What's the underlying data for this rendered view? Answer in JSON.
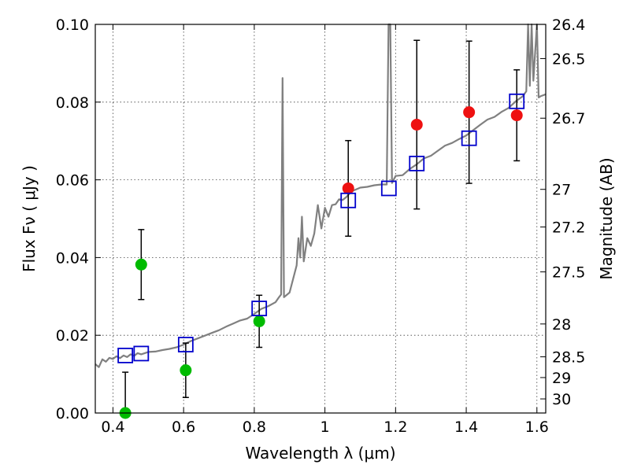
{
  "chart_data": {
    "type": "scatter",
    "xlabel": "Wavelength  λ (μm)",
    "ylabel": "Flux  Fν  ( μJy )",
    "y2label": "Magnitude (AB)",
    "xlim": [
      0.35,
      1.625
    ],
    "ylim": [
      0.0,
      0.1
    ],
    "grid": true,
    "colors": {
      "model": "#808080",
      "green_points": "#00bb00",
      "red_points": "#ee1111",
      "model_squares": "#0000cc",
      "error_bars": "#000000"
    },
    "x_ticks": [
      {
        "value": 0.4,
        "label": "0.4"
      },
      {
        "value": 0.6,
        "label": "0.6"
      },
      {
        "value": 0.8,
        "label": "0.8"
      },
      {
        "value": 1.0,
        "label": "1"
      },
      {
        "value": 1.2,
        "label": "1.2"
      },
      {
        "value": 1.4,
        "label": "1.4"
      },
      {
        "value": 1.6,
        "label": "1.6"
      }
    ],
    "y_ticks": [
      {
        "value": 0.0,
        "label": "0.00"
      },
      {
        "value": 0.02,
        "label": "0.02"
      },
      {
        "value": 0.04,
        "label": "0.04"
      },
      {
        "value": 0.06,
        "label": "0.06"
      },
      {
        "value": 0.08,
        "label": "0.08"
      },
      {
        "value": 0.1,
        "label": "0.10"
      }
    ],
    "mag_ticks": [
      {
        "value": 26.4,
        "label": "26.4"
      },
      {
        "value": 26.5,
        "label": "26.5"
      },
      {
        "value": 26.7,
        "label": "26.7"
      },
      {
        "value": 27.0,
        "label": "27"
      },
      {
        "value": 27.2,
        "label": "27.2"
      },
      {
        "value": 27.5,
        "label": "27.5"
      },
      {
        "value": 28.0,
        "label": "28"
      },
      {
        "value": 28.5,
        "label": "28.5"
      },
      {
        "value": 29.0,
        "label": "29"
      },
      {
        "value": 30.0,
        "label": "30"
      }
    ],
    "green_points": [
      {
        "x": 0.435,
        "y": 0.0,
        "err": 0.0105
      },
      {
        "x": 0.48,
        "y": 0.0382,
        "err": 0.009
      },
      {
        "x": 0.606,
        "y": 0.011,
        "err": 0.007
      },
      {
        "x": 0.814,
        "y": 0.0236,
        "err": 0.0067
      }
    ],
    "red_points": [
      {
        "x": 1.066,
        "y": 0.0578,
        "err": 0.0123
      },
      {
        "x": 1.26,
        "y": 0.0742,
        "err": 0.0217
      },
      {
        "x": 1.408,
        "y": 0.0774,
        "err": 0.0183
      },
      {
        "x": 1.543,
        "y": 0.0766,
        "err": 0.0117
      }
    ],
    "model_squares": [
      {
        "x": 0.435,
        "y": 0.0148
      },
      {
        "x": 0.48,
        "y": 0.0153
      },
      {
        "x": 0.606,
        "y": 0.0176
      },
      {
        "x": 0.814,
        "y": 0.0269
      },
      {
        "x": 1.066,
        "y": 0.0547
      },
      {
        "x": 1.181,
        "y": 0.0578
      },
      {
        "x": 1.26,
        "y": 0.0642
      },
      {
        "x": 1.408,
        "y": 0.0707
      },
      {
        "x": 1.543,
        "y": 0.0802
      }
    ],
    "model_spectrum": [
      [
        0.35,
        0.0126
      ],
      [
        0.36,
        0.0118
      ],
      [
        0.37,
        0.0138
      ],
      [
        0.38,
        0.0132
      ],
      [
        0.39,
        0.0142
      ],
      [
        0.4,
        0.0139
      ],
      [
        0.41,
        0.0146
      ],
      [
        0.42,
        0.0141
      ],
      [
        0.43,
        0.0148
      ],
      [
        0.44,
        0.0144
      ],
      [
        0.45,
        0.0151
      ],
      [
        0.46,
        0.0147
      ],
      [
        0.47,
        0.0154
      ],
      [
        0.48,
        0.0151
      ],
      [
        0.5,
        0.0157
      ],
      [
        0.52,
        0.0158
      ],
      [
        0.54,
        0.0162
      ],
      [
        0.56,
        0.0165
      ],
      [
        0.58,
        0.0169
      ],
      [
        0.6,
        0.0176
      ],
      [
        0.62,
        0.0185
      ],
      [
        0.64,
        0.0192
      ],
      [
        0.66,
        0.0199
      ],
      [
        0.68,
        0.0206
      ],
      [
        0.7,
        0.0213
      ],
      [
        0.72,
        0.0222
      ],
      [
        0.74,
        0.023
      ],
      [
        0.76,
        0.0238
      ],
      [
        0.78,
        0.0243
      ],
      [
        0.8,
        0.0255
      ],
      [
        0.82,
        0.0268
      ],
      [
        0.84,
        0.0275
      ],
      [
        0.86,
        0.0285
      ],
      [
        0.87,
        0.0298
      ],
      [
        0.876,
        0.0305
      ],
      [
        0.88,
        0.0862
      ],
      [
        0.884,
        0.0298
      ],
      [
        0.9,
        0.031
      ],
      [
        0.91,
        0.0345
      ],
      [
        0.92,
        0.038
      ],
      [
        0.925,
        0.045
      ],
      [
        0.93,
        0.04
      ],
      [
        0.935,
        0.0505
      ],
      [
        0.94,
        0.039
      ],
      [
        0.95,
        0.045
      ],
      [
        0.96,
        0.043
      ],
      [
        0.97,
        0.0462
      ],
      [
        0.98,
        0.0535
      ],
      [
        0.99,
        0.0475
      ],
      [
        1.0,
        0.0528
      ],
      [
        1.01,
        0.0505
      ],
      [
        1.02,
        0.0535
      ],
      [
        1.03,
        0.0537
      ],
      [
        1.04,
        0.055
      ],
      [
        1.05,
        0.0548
      ],
      [
        1.06,
        0.0555
      ],
      [
        1.07,
        0.0565
      ],
      [
        1.08,
        0.0572
      ],
      [
        1.1,
        0.058
      ],
      [
        1.12,
        0.0582
      ],
      [
        1.14,
        0.0586
      ],
      [
        1.16,
        0.0588
      ],
      [
        1.175,
        0.0588
      ],
      [
        1.18,
        0.1
      ],
      [
        1.185,
        0.1
      ],
      [
        1.19,
        0.0592
      ],
      [
        1.2,
        0.061
      ],
      [
        1.22,
        0.0612
      ],
      [
        1.24,
        0.0628
      ],
      [
        1.26,
        0.064
      ],
      [
        1.28,
        0.0655
      ],
      [
        1.3,
        0.0662
      ],
      [
        1.32,
        0.0675
      ],
      [
        1.34,
        0.0688
      ],
      [
        1.36,
        0.0695
      ],
      [
        1.38,
        0.0705
      ],
      [
        1.4,
        0.0714
      ],
      [
        1.42,
        0.0728
      ],
      [
        1.44,
        0.0742
      ],
      [
        1.46,
        0.0755
      ],
      [
        1.48,
        0.0762
      ],
      [
        1.5,
        0.0775
      ],
      [
        1.52,
        0.0785
      ],
      [
        1.54,
        0.0802
      ],
      [
        1.56,
        0.0815
      ],
      [
        1.57,
        0.0828
      ],
      [
        1.575,
        0.1
      ],
      [
        1.58,
        0.0842
      ],
      [
        1.585,
        0.1
      ],
      [
        1.59,
        0.0855
      ],
      [
        1.6,
        0.1
      ],
      [
        1.605,
        0.0812
      ],
      [
        1.61,
        0.0815
      ],
      [
        1.625,
        0.082
      ]
    ]
  }
}
